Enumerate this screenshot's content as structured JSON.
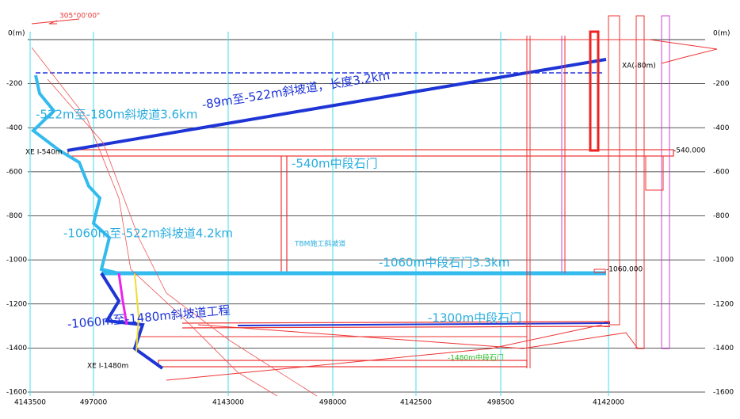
{
  "north_arrow": "305°00'00\"",
  "depth_axis": {
    "zero_label": "0(m)",
    "ticks": [
      -200,
      -400,
      -600,
      -800,
      -1000,
      -1200,
      -1400,
      -1600
    ]
  },
  "grid_coords": [
    "4143500",
    "497000",
    "4143000",
    "498000",
    "4142500",
    "498500",
    "4142000"
  ],
  "labels": {
    "ramp_upper_left": "-522m至-180m斜坡道3.6km",
    "ramp_upper_right": "-89m至-522m斜坡道，长度3.2km",
    "crosscut_540": "-540m中段石门",
    "ramp_middle": "-1060m至-522m斜坡道4.2km",
    "tbm": "TBM施工斜坡道",
    "crosscut_1060": "-1060m中段石门3.3km",
    "crosscut_1300": "-1300m中段石门",
    "ramp_lower": "-1060m至-1480m斜坡道工程",
    "xe_540": "XE I-540m",
    "xe_1480": "XE I-1480m",
    "crosscut_1480": "-1480m中段石门",
    "xa": "XA(-80m)",
    "elev_540": "-540.000",
    "elev_1060": "-1060.000"
  }
}
